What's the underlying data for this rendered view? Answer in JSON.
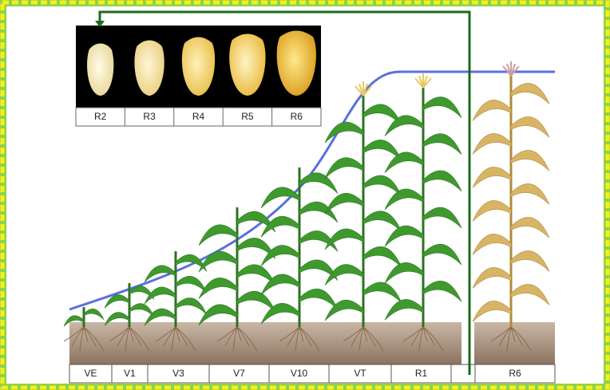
{
  "kernels": {
    "labels": [
      "R2",
      "R3",
      "R4",
      "R5",
      "R6"
    ]
  },
  "stages": {
    "labels": [
      "VE",
      "V1",
      "V3",
      "V7",
      "V10",
      "VT",
      "R1",
      "R6"
    ]
  }
}
